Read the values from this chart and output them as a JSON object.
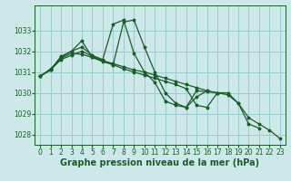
{
  "xlabel": "Graphe pression niveau de la mer (hPa)",
  "background_color": "#cce8e8",
  "grid_color": "#99cccc",
  "line_color": "#1a5c2a",
  "marker": "*",
  "series": [
    {
      "x": [
        0,
        1,
        2,
        3,
        4,
        5,
        6,
        7,
        8,
        9,
        10,
        11,
        12,
        13,
        14,
        15,
        16,
        17,
        18,
        19,
        20,
        21,
        22,
        23
      ],
      "y": [
        1030.8,
        1031.1,
        1031.75,
        1032.0,
        1032.5,
        1031.7,
        1031.5,
        1031.35,
        1033.4,
        1033.5,
        1032.2,
        1031.0,
        1030.0,
        1029.5,
        1029.3,
        1030.1,
        1030.05,
        1030.0,
        1029.9,
        1029.5,
        1028.5,
        1028.3,
        null,
        null
      ]
    },
    {
      "x": [
        0,
        1,
        2,
        3,
        4,
        5,
        6,
        7,
        8,
        9,
        10,
        11,
        12,
        13,
        14,
        15,
        16,
        17,
        18,
        19,
        20,
        21,
        22,
        23
      ],
      "y": [
        1030.8,
        1031.1,
        1031.7,
        1032.0,
        1032.2,
        1031.8,
        1031.6,
        1033.3,
        1033.5,
        1031.9,
        1031.0,
        1030.5,
        1029.6,
        1029.4,
        1029.3,
        1029.8,
        1030.1,
        null,
        null,
        null,
        null,
        null,
        null,
        null
      ]
    },
    {
      "x": [
        0,
        1,
        2,
        3,
        4,
        5,
        6,
        7,
        8,
        9,
        10,
        11,
        12,
        13,
        14,
        15,
        16,
        17,
        18,
        19,
        20,
        21,
        22,
        23
      ],
      "y": [
        1030.8,
        1031.15,
        1031.65,
        1031.9,
        1031.85,
        1031.7,
        1031.55,
        1031.4,
        1031.25,
        1031.1,
        1031.0,
        1030.85,
        1030.7,
        1030.55,
        1030.4,
        1030.25,
        1030.1,
        1030.0,
        null,
        null,
        null,
        null,
        null,
        null
      ]
    },
    {
      "x": [
        0,
        1,
        2,
        3,
        4,
        5,
        6,
        7,
        8,
        9,
        10,
        11,
        12,
        13,
        14,
        15,
        16,
        17,
        18,
        19,
        20,
        21,
        22,
        23
      ],
      "y": [
        1030.8,
        1031.1,
        1031.6,
        1031.8,
        1032.0,
        1031.75,
        1031.55,
        1031.35,
        1031.15,
        1031.0,
        1030.85,
        1030.7,
        1030.55,
        1030.4,
        1030.2,
        1029.4,
        1029.3,
        1030.0,
        1030.0,
        1029.5,
        1028.8,
        1028.5,
        1028.2,
        1027.8
      ]
    }
  ],
  "ylim": [
    1027.5,
    1034.2
  ],
  "yticks": [
    1028,
    1029,
    1030,
    1031,
    1032,
    1033
  ],
  "xlim": [
    -0.5,
    23.5
  ],
  "xticks": [
    0,
    1,
    2,
    3,
    4,
    5,
    6,
    7,
    8,
    9,
    10,
    11,
    12,
    13,
    14,
    15,
    16,
    17,
    18,
    19,
    20,
    21,
    22,
    23
  ],
  "tick_fontsize": 5.5,
  "label_fontsize": 7
}
